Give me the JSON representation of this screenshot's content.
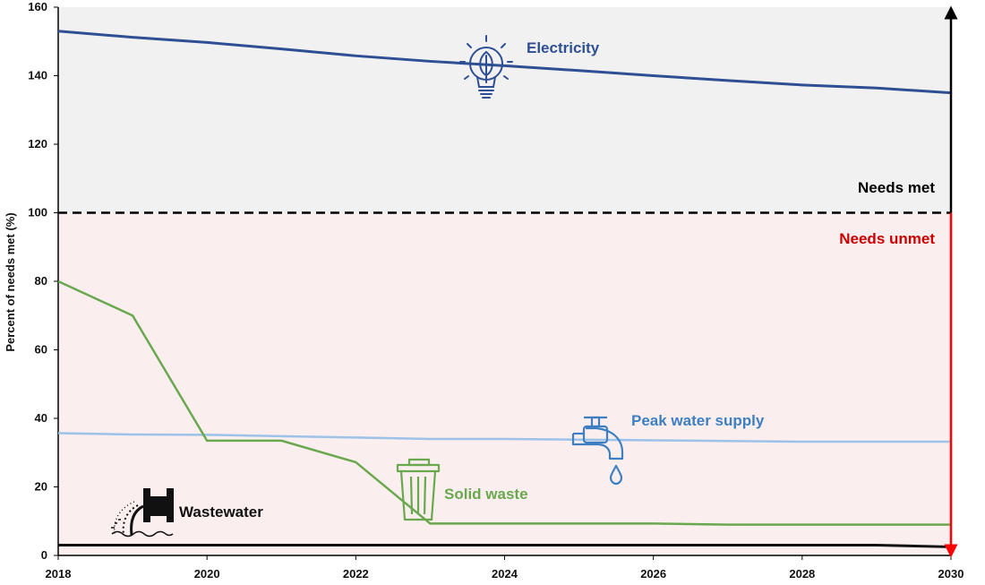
{
  "chart_data": {
    "type": "line",
    "ylabel": "Percent of needs met (%)",
    "xlabel": "",
    "xlim": [
      2018,
      2030
    ],
    "ylim": [
      0,
      160
    ],
    "x_ticks": [
      "2018",
      "2020",
      "2022",
      "2024",
      "2026",
      "2028",
      "2030"
    ],
    "y_ticks": [
      "0",
      "20",
      "40",
      "60",
      "80",
      "100",
      "120",
      "140",
      "160"
    ],
    "threshold": 100,
    "zones": {
      "above_label": "Needs met",
      "below_label": "Needs unmet"
    },
    "colors": {
      "met_zone": "#f1f1f2",
      "unmet_zone": "#fbeeee",
      "up_arrow": "#000000",
      "down_arrow": "#ff0000",
      "unmet_text": "#cc0000"
    },
    "series": [
      {
        "name": "Electricity",
        "color": "#2e4f93",
        "icon": "lightbulb-leaf-icon",
        "x": [
          2018,
          2019,
          2020,
          2021,
          2022,
          2023,
          2024,
          2025,
          2026,
          2027,
          2028,
          2029,
          2030
        ],
        "values": [
          153,
          151.2,
          149.7,
          147.8,
          145.8,
          144.2,
          142.9,
          141.5,
          140.0,
          138.6,
          137.3,
          136.4,
          135
        ]
      },
      {
        "name": "Peak water supply",
        "color": "#9cc2e8",
        "label_color": "#3d7fc1",
        "icon": "water-tap-icon",
        "x": [
          2018,
          2019,
          2020,
          2021,
          2022,
          2023,
          2024,
          2025,
          2026,
          2027,
          2028,
          2029,
          2030
        ],
        "values": [
          35.7,
          35.3,
          35.2,
          34.8,
          34.4,
          34.0,
          34.0,
          33.8,
          33.6,
          33.4,
          33.2,
          33.2,
          33.2
        ]
      },
      {
        "name": "Solid waste",
        "color": "#6aa84f",
        "icon": "trash-can-icon",
        "x": [
          2018,
          2019,
          2020,
          2021,
          2022,
          2023,
          2024,
          2025,
          2026,
          2027,
          2028,
          2029,
          2030
        ],
        "values": [
          80,
          70,
          33.5,
          33.5,
          27.2,
          9.3,
          9.3,
          9.3,
          9.3,
          9.0,
          9.0,
          9.0,
          9.0
        ]
      },
      {
        "name": "Wastewater",
        "color": "#111111",
        "icon": "drain-pipe-icon",
        "x": [
          2018,
          2019,
          2020,
          2021,
          2022,
          2023,
          2024,
          2025,
          2026,
          2027,
          2028,
          2029,
          2030
        ],
        "values": [
          3,
          3,
          3,
          3,
          3,
          3,
          3,
          3,
          3,
          3,
          3,
          3,
          2.5
        ]
      }
    ]
  }
}
